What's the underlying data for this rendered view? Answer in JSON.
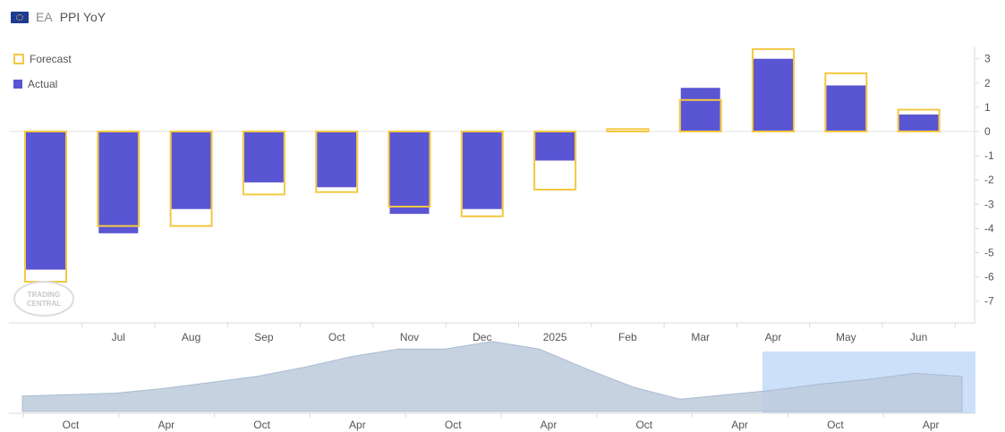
{
  "header": {
    "country": "EA",
    "title": "PPI YoY"
  },
  "legend": {
    "forecast_label": "Forecast",
    "actual_label": "Actual"
  },
  "colors": {
    "actual": "#5a55d2",
    "forecast": "#f5c842",
    "navigator_fill": "#bfcbdb",
    "navigator_selection": "#cce0fa"
  },
  "watermark": {
    "line1": "TRADING",
    "line2": "CENTRAL"
  },
  "chart_data": {
    "type": "bar",
    "categories": [
      "",
      "Jul",
      "Aug",
      "Sep",
      "Oct",
      "Nov",
      "Dec",
      "2025",
      "Feb",
      "Mar",
      "Apr",
      "May",
      "Jun"
    ],
    "series": [
      {
        "name": "Actual",
        "values": [
          -5.7,
          -4.2,
          -3.2,
          -2.1,
          -2.3,
          -3.4,
          -3.2,
          -1.2,
          0.0,
          1.8,
          3.0,
          1.9,
          0.7
        ]
      },
      {
        "name": "Forecast",
        "values": [
          -6.2,
          -3.9,
          -3.9,
          -2.6,
          -2.5,
          -3.1,
          -3.5,
          -2.4,
          0.1,
          1.3,
          3.4,
          2.4,
          0.9
        ]
      }
    ],
    "ylim": [
      -8,
      3.5
    ],
    "yticks": [
      3,
      2,
      1,
      0,
      -1,
      -2,
      -3,
      -4,
      -5,
      -6,
      -7
    ],
    "legend_position": "top-left"
  },
  "navigator": {
    "labels": [
      "Oct",
      "Apr",
      "Oct",
      "Apr",
      "Oct",
      "Apr",
      "Oct",
      "Apr",
      "Oct",
      "Apr"
    ],
    "values": [
      3.0,
      4.0,
      5.0,
      8.0,
      12.0,
      16.0,
      22.0,
      29.0,
      34.0,
      34.0,
      39.0,
      34.0,
      21.0,
      9.0,
      1.0,
      4.0,
      7.0,
      11.0,
      14.0,
      18.0,
      16.0
    ]
  }
}
